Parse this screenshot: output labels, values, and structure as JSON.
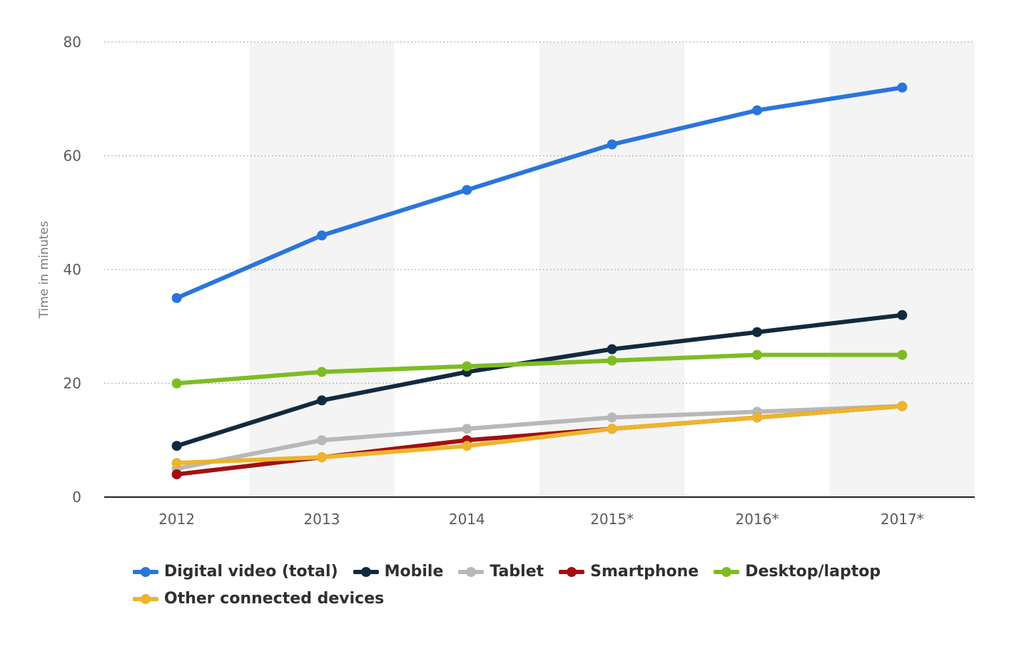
{
  "chart_data": {
    "type": "line",
    "title": "",
    "xlabel": "",
    "ylabel": "Time in minutes",
    "categories": [
      "2012",
      "2013",
      "2014",
      "2015*",
      "2016*",
      "2017*"
    ],
    "ylim": [
      0,
      80
    ],
    "yticks": [
      "0",
      "20",
      "40",
      "60",
      "80"
    ],
    "grid": "horizontal dotted",
    "legend_position": "bottom-left",
    "series": [
      {
        "name": "Digital video (total)",
        "color": "#2a75dc",
        "values": [
          35,
          46,
          54,
          62,
          68,
          72
        ]
      },
      {
        "name": "Mobile",
        "color": "#112a3f",
        "values": [
          9,
          17,
          22,
          26,
          29,
          32
        ]
      },
      {
        "name": "Tablet",
        "color": "#b8b8b8",
        "values": [
          5,
          10,
          12,
          14,
          15,
          16
        ]
      },
      {
        "name": "Smartphone",
        "color": "#a30f10",
        "values": [
          4,
          7,
          10,
          12,
          14,
          16
        ]
      },
      {
        "name": "Desktop/laptop",
        "color": "#7dbd23",
        "values": [
          20,
          22,
          23,
          24,
          25,
          25
        ]
      },
      {
        "name": "Other connected devices",
        "color": "#eeb42c",
        "values": [
          6,
          7,
          9,
          12,
          14,
          16
        ]
      }
    ]
  }
}
